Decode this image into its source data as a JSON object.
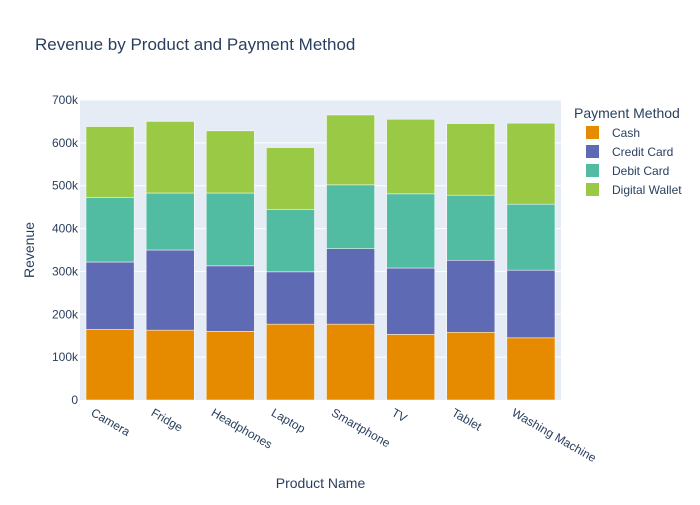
{
  "chart_data": {
    "type": "bar",
    "stacked": true,
    "title": "Revenue by Product and Payment Method",
    "xlabel": "Product Name",
    "ylabel": "Revenue",
    "ylim": [
      0,
      700000
    ],
    "yticks": [
      0,
      100000,
      200000,
      300000,
      400000,
      500000,
      600000,
      700000
    ],
    "ytick_labels": [
      "0",
      "100k",
      "200k",
      "300k",
      "400k",
      "500k",
      "600k",
      "700k"
    ],
    "categories": [
      "Camera",
      "Fridge",
      "Headphones",
      "Laptop",
      "Smartphone",
      "TV",
      "Tablet",
      "Washing Machine"
    ],
    "legend_title": "Payment Method",
    "legend_position": "right",
    "grid": true,
    "plot_background": "#e5ecf6",
    "series": [
      {
        "name": "Cash",
        "color": "#e68a00",
        "values": [
          165000,
          163000,
          160000,
          177000,
          177000,
          153000,
          158000,
          145000
        ]
      },
      {
        "name": "Credit Card",
        "color": "#5f6ab4",
        "values": [
          157000,
          187000,
          153000,
          122000,
          176000,
          155000,
          168000,
          158000
        ]
      },
      {
        "name": "Debit Card",
        "color": "#52bca3",
        "values": [
          150000,
          133000,
          170000,
          145000,
          149000,
          173000,
          152000,
          154000
        ]
      },
      {
        "name": "Digital Wallet",
        "color": "#99c945",
        "values": [
          166000,
          167000,
          145000,
          145000,
          163000,
          174000,
          167000,
          189000
        ]
      }
    ]
  }
}
